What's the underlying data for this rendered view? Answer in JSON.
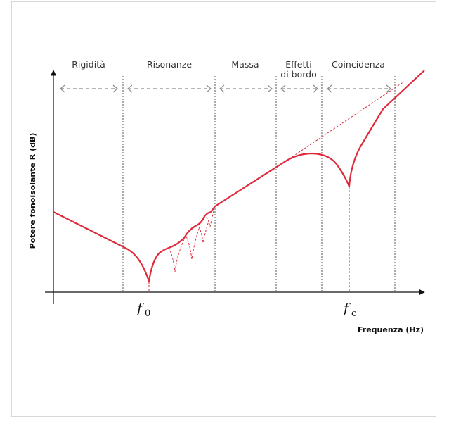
{
  "diagram": {
    "y_axis_label": "Potere fonoisolante R (dB)",
    "x_axis_label": "Frequenza (Hz)",
    "regions": [
      {
        "line1": "Rigidità",
        "line2": ""
      },
      {
        "line1": "Risonanze",
        "line2": ""
      },
      {
        "line1": "Massa",
        "line2": ""
      },
      {
        "line1": "Effetti",
        "line2": "di bordo"
      },
      {
        "line1": "Coincidenza",
        "line2": ""
      }
    ],
    "markers": {
      "f0_symbol": "f",
      "f0_sub": "0",
      "fc_symbol": "f",
      "fc_sub": "c"
    },
    "colors": {
      "curve": "#e0293b",
      "axis": "#111111",
      "separator": "#555555",
      "arrow": "#8a8a8a"
    }
  }
}
